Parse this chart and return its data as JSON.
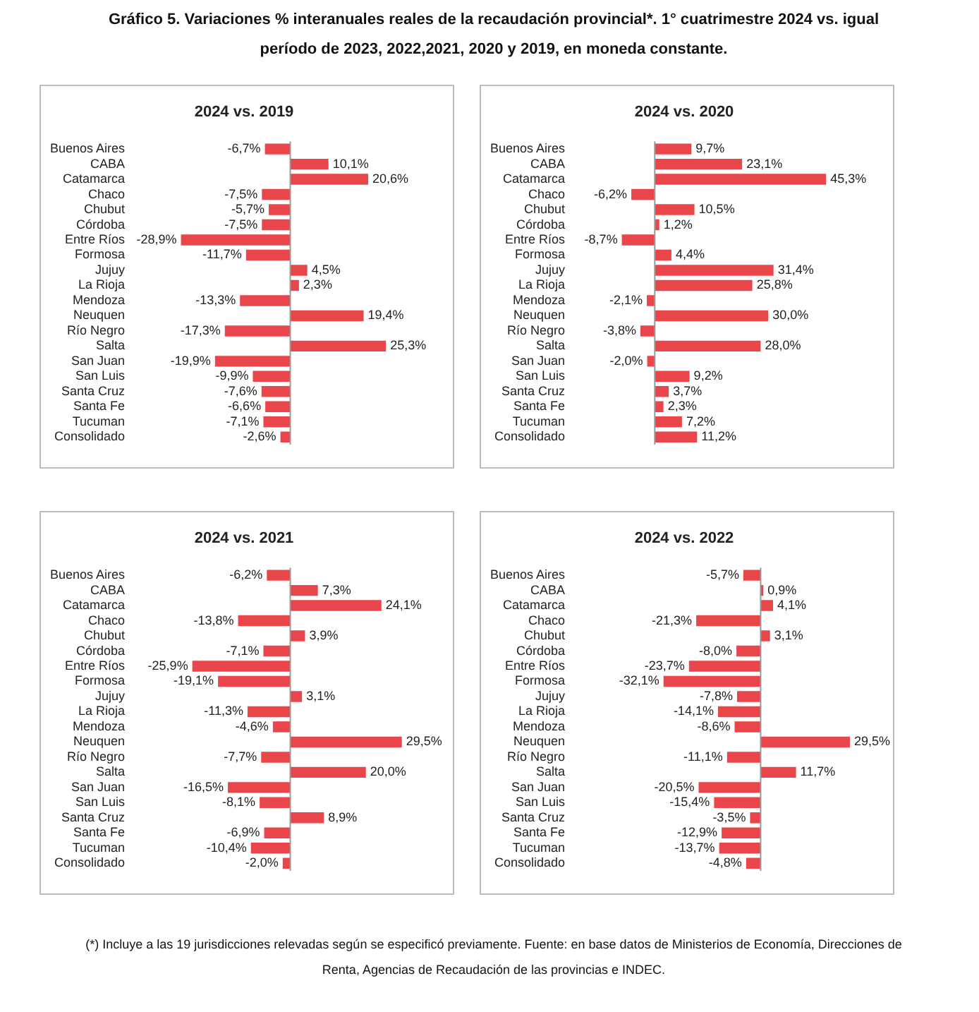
{
  "chart_data": [
    {
      "type": "bar",
      "orientation": "horizontal",
      "title": "2024 vs. 2019",
      "annotations": [
        "Gráfico 5. Variaciones % interanuales reales de la recaudación provincial*. 1° cuatrimestre 2024 vs. igual período de 2023, 2022,2021, 2020 y 2019, en moneda constante.",
        "(*) Incluye a las 19 jurisdicciones relevadas según se especificó previamente. Fuente: en base datos de Ministerios de Economía, Direcciones de Renta, Agencias de Recaudación de las provincias e INDEC."
      ],
      "categories": [
        "Buenos Aires",
        "CABA",
        "Catamarca",
        "Chaco",
        "Chubut",
        "Córdoba",
        "Entre Ríos",
        "Formosa",
        "Jujuy",
        "La Rioja",
        "Mendoza",
        "Neuquen",
        "Río Negro",
        "Salta",
        "San Juan",
        "San Luis",
        "Santa Cruz",
        "Santa Fe",
        "Tucuman",
        "Consolidado"
      ],
      "series": [
        {
          "color": "#e8464b",
          "values": [
            -6.7,
            10.1,
            20.6,
            -7.5,
            -5.7,
            -7.5,
            -28.9,
            -11.7,
            4.5,
            2.3,
            -13.3,
            19.4,
            -17.3,
            25.3,
            -19.9,
            -9.9,
            -7.6,
            -6.6,
            -7.1,
            -2.6
          ],
          "value_labels": [
            "-6,7%",
            "10,1%",
            "20,6%",
            "-7,5%",
            "-5,7%",
            "-7,5%",
            "-28,9%",
            "-11,7%",
            "4,5%",
            "2,3%",
            "-13,3%",
            "19,4%",
            "-17,3%",
            "25,3%",
            "-19,9%",
            "-9,9%",
            "-7,6%",
            "-6,6%",
            "-7,1%",
            "-2,6%"
          ]
        }
      ]
    },
    {
      "type": "bar",
      "orientation": "horizontal",
      "title": "2024 vs. 2020",
      "categories": [
        "Buenos Aires",
        "CABA",
        "Catamarca",
        "Chaco",
        "Chubut",
        "Córdoba",
        "Entre Ríos",
        "Formosa",
        "Jujuy",
        "La Rioja",
        "Mendoza",
        "Neuquen",
        "Río Negro",
        "Salta",
        "San Juan",
        "San Luis",
        "Santa Cruz",
        "Santa Fe",
        "Tucuman",
        "Consolidado"
      ],
      "series": [
        {
          "color": "#e8464b",
          "values": [
            9.7,
            23.1,
            45.3,
            -6.2,
            10.5,
            1.2,
            -8.7,
            4.4,
            31.4,
            25.8,
            -2.1,
            30.0,
            -3.8,
            28.0,
            -2.0,
            9.2,
            3.7,
            2.3,
            7.2,
            11.2
          ],
          "value_labels": [
            "9,7%",
            "23,1%",
            "45,3%",
            "-6,2%",
            "10,5%",
            "1,2%",
            "-8,7%",
            "4,4%",
            "31,4%",
            "25,8%",
            "-2,1%",
            "30,0%",
            "-3,8%",
            "28,0%",
            "-2,0%",
            "9,2%",
            "3,7%",
            "2,3%",
            "7,2%",
            "11,2%"
          ]
        }
      ]
    },
    {
      "type": "bar",
      "orientation": "horizontal",
      "title": "2024 vs. 2021",
      "categories": [
        "Buenos Aires",
        "CABA",
        "Catamarca",
        "Chaco",
        "Chubut",
        "Córdoba",
        "Entre Ríos",
        "Formosa",
        "Jujuy",
        "La Rioja",
        "Mendoza",
        "Neuquen",
        "Río Negro",
        "Salta",
        "San Juan",
        "San Luis",
        "Santa Cruz",
        "Santa Fe",
        "Tucuman",
        "Consolidado"
      ],
      "series": [
        {
          "color": "#e8464b",
          "values": [
            -6.2,
            7.3,
            24.1,
            -13.8,
            3.9,
            -7.1,
            -25.9,
            -19.1,
            3.1,
            -11.3,
            -4.6,
            29.5,
            -7.7,
            20.0,
            -16.5,
            -8.1,
            8.9,
            -6.9,
            -10.4,
            -2.0
          ],
          "value_labels": [
            "-6,2%",
            "7,3%",
            "24,1%",
            "-13,8%",
            "3,9%",
            "-7,1%",
            "-25,9%",
            "-19,1%",
            "3,1%",
            "-11,3%",
            "-4,6%",
            "29,5%",
            "-7,7%",
            "20,0%",
            "-16,5%",
            "-8,1%",
            "8,9%",
            "-6,9%",
            "-10,4%",
            "-2,0%"
          ]
        }
      ]
    },
    {
      "type": "bar",
      "orientation": "horizontal",
      "title": "2024 vs. 2022",
      "categories": [
        "Buenos Aires",
        "CABA",
        "Catamarca",
        "Chaco",
        "Chubut",
        "Córdoba",
        "Entre Ríos",
        "Formosa",
        "Jujuy",
        "La Rioja",
        "Mendoza",
        "Neuquen",
        "Río Negro",
        "Salta",
        "San Juan",
        "San Luis",
        "Santa Cruz",
        "Santa Fe",
        "Tucuman",
        "Consolidado"
      ],
      "series": [
        {
          "color": "#e8464b",
          "values": [
            -5.7,
            0.9,
            4.1,
            -21.3,
            3.1,
            -8.0,
            -23.7,
            -32.1,
            -7.8,
            -14.1,
            -8.6,
            29.5,
            -11.1,
            11.7,
            -20.5,
            -15.4,
            -3.5,
            -12.9,
            -13.7,
            -4.8
          ],
          "value_labels": [
            "-5,7%",
            "0,9%",
            "4,1%",
            "-21,3%",
            "3,1%",
            "-8,0%",
            "-23,7%",
            "-32,1%",
            "-7,8%",
            "-14,1%",
            "-8,6%",
            "29,5%",
            "-11,1%",
            "11,7%",
            "-20,5%",
            "-15,4%",
            "-3,5%",
            "-12,9%",
            "-13,7%",
            "-4,8%"
          ]
        }
      ]
    }
  ]
}
